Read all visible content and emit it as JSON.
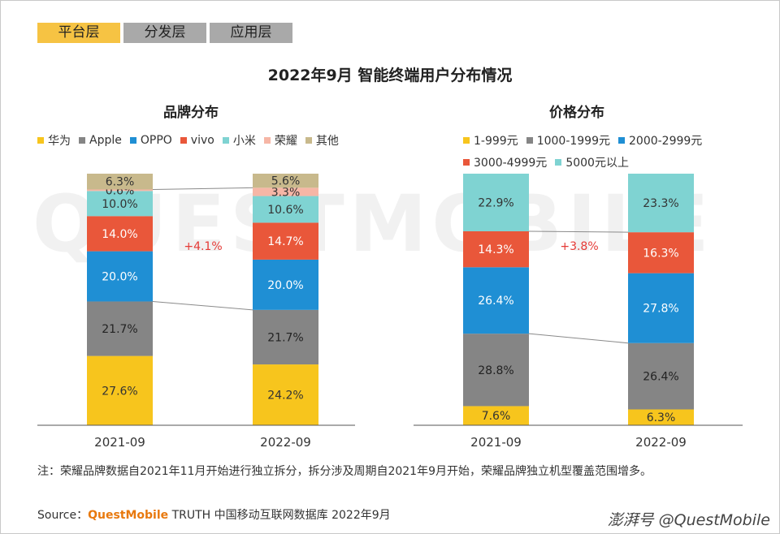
{
  "tabs": [
    "平台层",
    "分发层",
    "应用层"
  ],
  "title": "2022年9月 智能终端用户分布情况",
  "note": "注：荣耀品牌数据自2021年11月开始进行独立拆分，拆分涉及周期自2021年9月开始，荣耀品牌独立机型覆盖范围增多。",
  "source": {
    "prefix": "Source：",
    "brand": "QuestMobile",
    "rest": " TRUTH 中国移动互联网数据库 2022年9月"
  },
  "watermark": "QUESTMOBILE",
  "wm_corner": "@QuestMobile",
  "wm_corner_logo": "澎湃号",
  "colors": {
    "华为": "#f7c51d",
    "Apple": "#858585",
    "OPPO": "#1f8fd4",
    "vivo": "#e9573a",
    "小米": "#7fd3d2",
    "荣耀": "#f6b6a6",
    "其他": "#c8b98c"
  },
  "chart_data": [
    {
      "type": "bar",
      "stacked": true,
      "title": "品牌分布",
      "categories": [
        "2021-09",
        "2022-09"
      ],
      "annotation": "+4.1%",
      "series": [
        {
          "name": "华为",
          "values": [
            27.6,
            24.2
          ],
          "color": "#f7c51d"
        },
        {
          "name": "Apple",
          "values": [
            21.7,
            21.7
          ],
          "color": "#858585"
        },
        {
          "name": "OPPO",
          "values": [
            20.0,
            20.0
          ],
          "color": "#1f8fd4"
        },
        {
          "name": "vivo",
          "values": [
            14.0,
            14.7
          ],
          "color": "#e9573a"
        },
        {
          "name": "小米",
          "values": [
            10.0,
            10.6
          ],
          "color": "#7fd3d2"
        },
        {
          "name": "荣耀",
          "values": [
            0.6,
            3.3
          ],
          "color": "#f6b6a6"
        },
        {
          "name": "其他",
          "values": [
            6.3,
            5.6
          ],
          "color": "#c8b98c"
        }
      ]
    },
    {
      "type": "bar",
      "stacked": true,
      "title": "价格分布",
      "categories": [
        "2021-09",
        "2022-09"
      ],
      "annotation": "+3.8%",
      "series": [
        {
          "name": "1-999元",
          "values": [
            7.6,
            6.3
          ],
          "color": "#f7c51d"
        },
        {
          "name": "1000-1999元",
          "values": [
            28.8,
            26.4
          ],
          "color": "#858585"
        },
        {
          "name": "2000-2999元",
          "values": [
            26.4,
            27.8
          ],
          "color": "#1f8fd4"
        },
        {
          "name": "3000-4999元",
          "values": [
            14.3,
            16.3
          ],
          "color": "#e9573a"
        },
        {
          "name": "5000元以上",
          "values": [
            22.9,
            23.3
          ],
          "color": "#7fd3d2"
        }
      ]
    }
  ]
}
